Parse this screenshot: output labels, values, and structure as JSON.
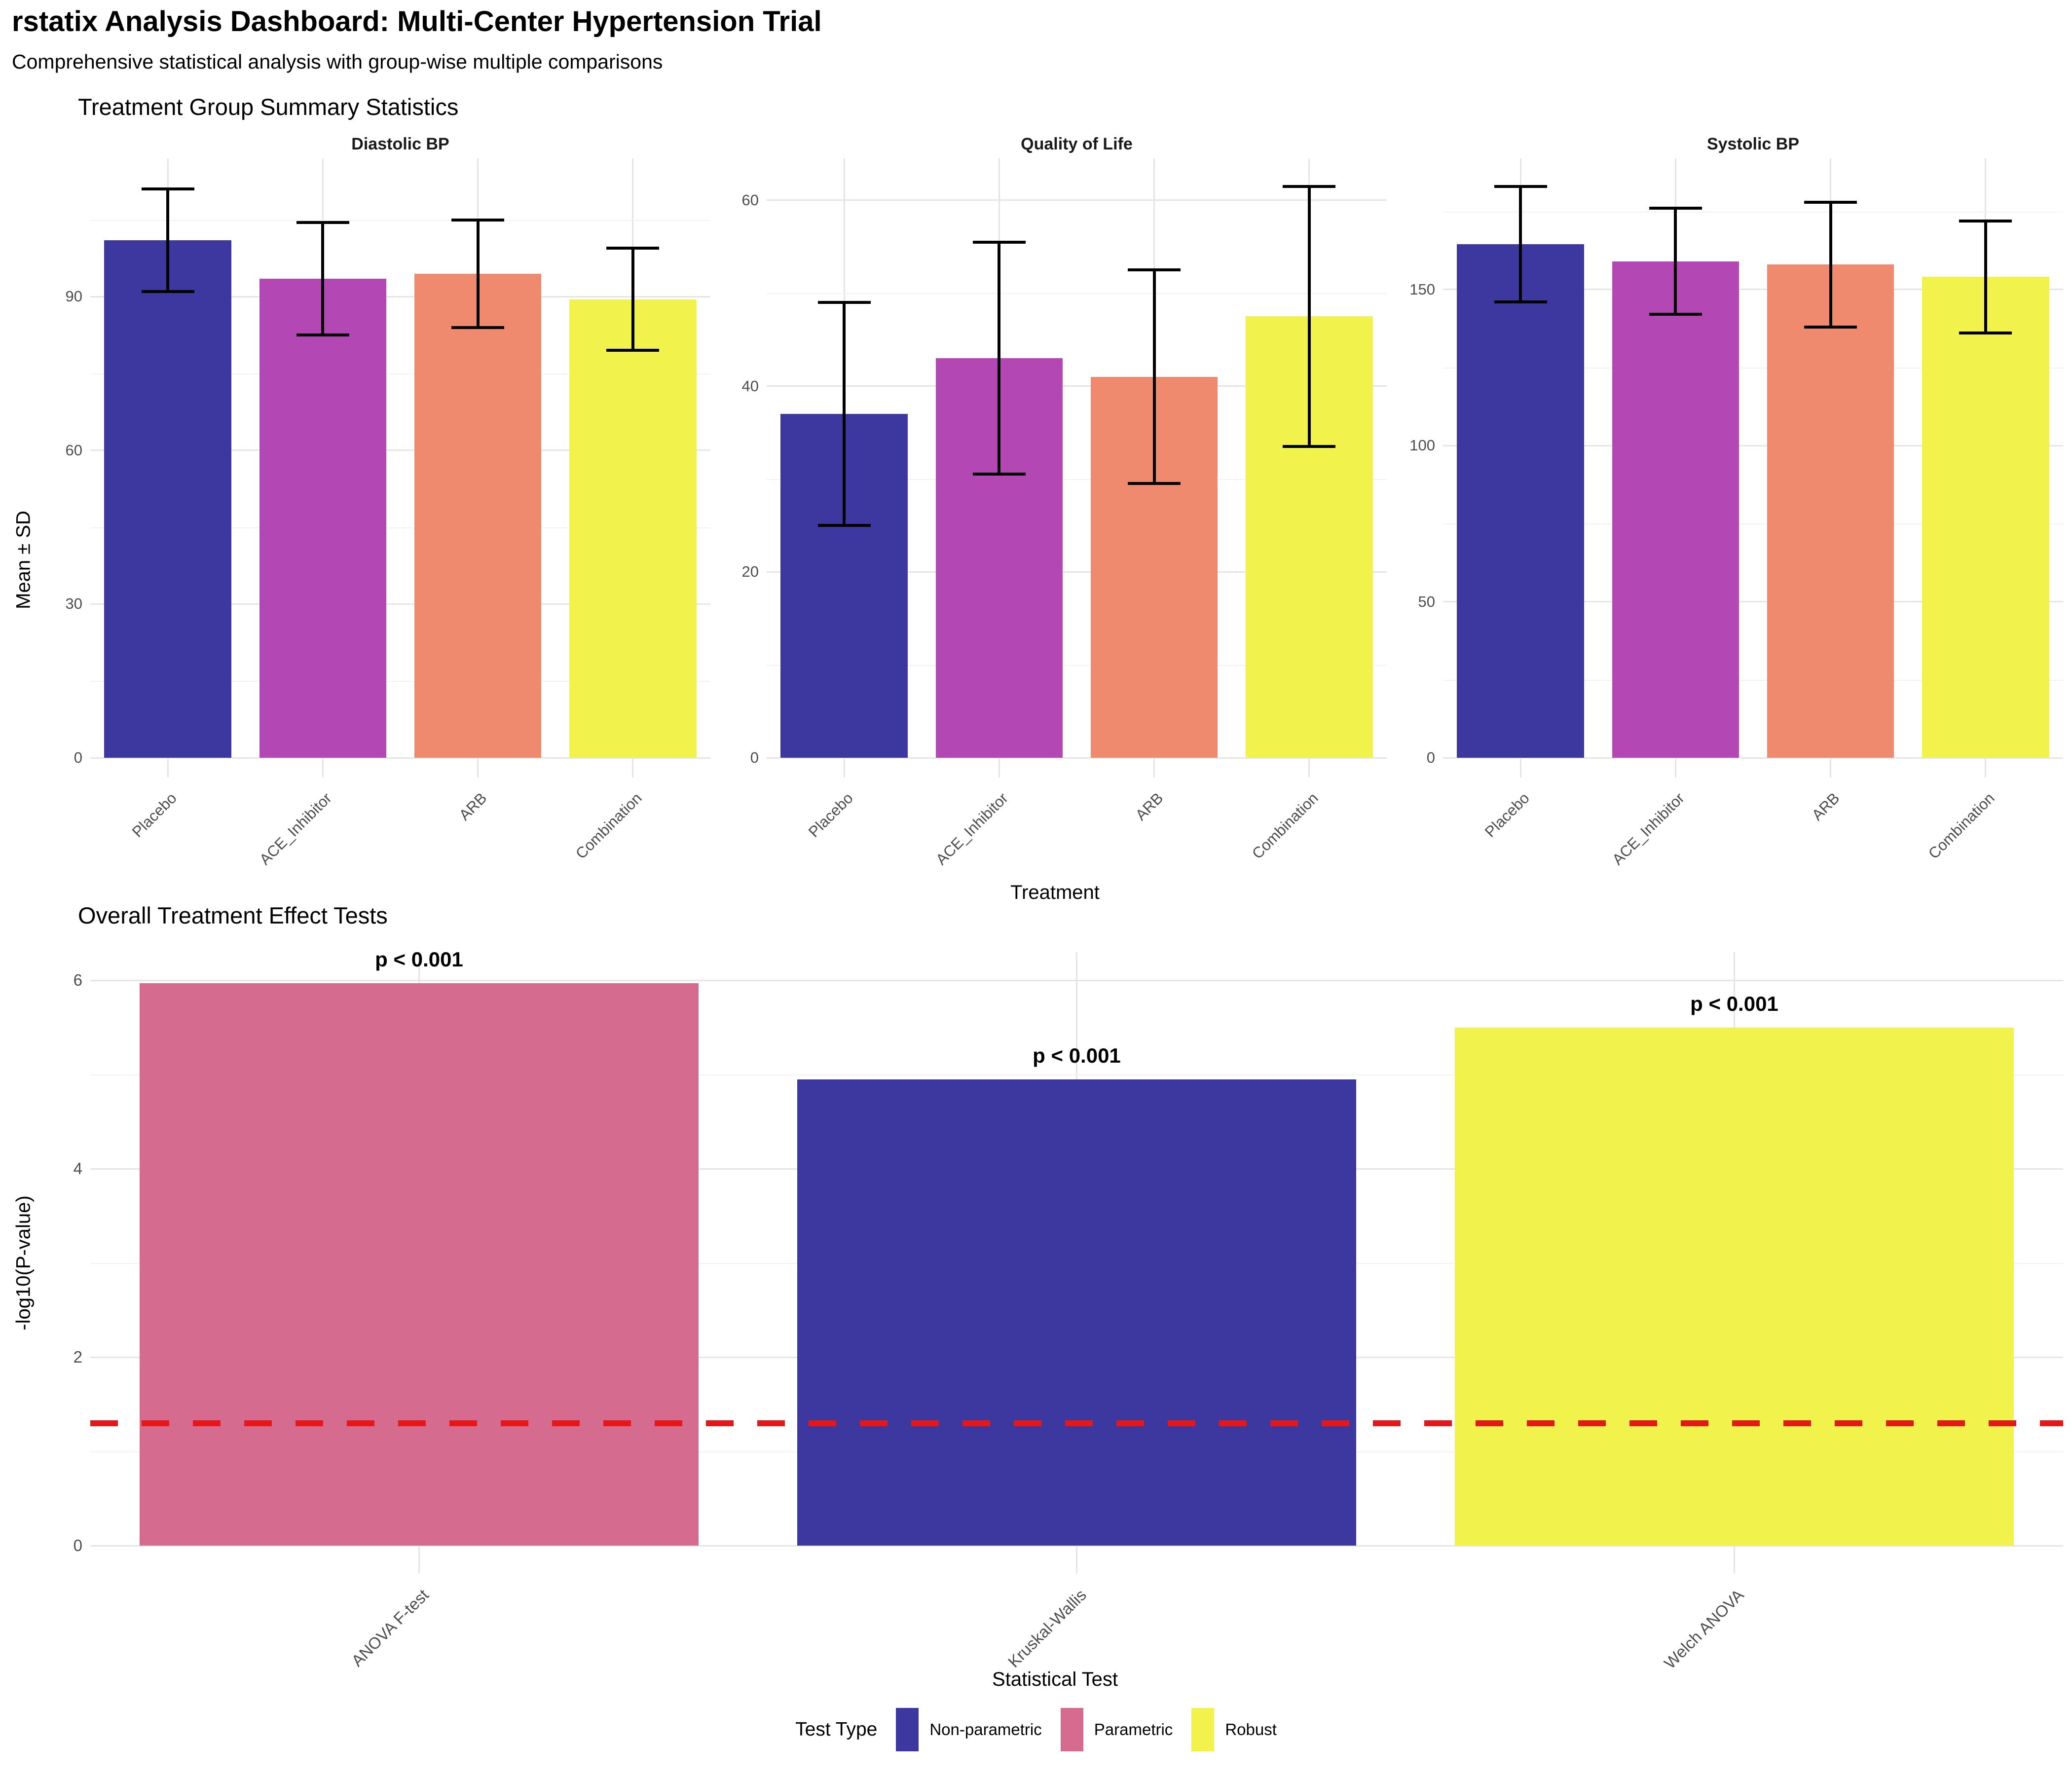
{
  "header": {
    "title": "rstatix Analysis Dashboard: Multi-Center Hypertension Trial",
    "subtitle": "Comprehensive statistical analysis with group-wise multiple comparisons"
  },
  "chart_data": [
    {
      "type": "bar",
      "title": "Treatment Group Summary Statistics",
      "xlabel": "Treatment",
      "ylabel": "Mean ± SD",
      "grid": true,
      "legend_position": "none",
      "categories": [
        "Placebo",
        "ACE_Inhibitor",
        "ARB",
        "Combination"
      ],
      "bar_colors": [
        "#3d38a0",
        "#b347b4",
        "#ef8a6e",
        "#f1f24b"
      ],
      "facets": [
        {
          "label": "Diastolic BP",
          "yticks": [
            0,
            30,
            60,
            90
          ],
          "ymax": 117,
          "means": [
            101,
            93.5,
            94.5,
            89.5
          ],
          "sds": [
            10,
            11,
            10.5,
            10
          ]
        },
        {
          "label": "Quality of Life",
          "yticks": [
            0,
            20,
            40,
            60
          ],
          "ymax": 64.5,
          "means": [
            37,
            43,
            41,
            47.5
          ],
          "sds": [
            12,
            12.5,
            11.5,
            14
          ]
        },
        {
          "label": "Systolic BP",
          "yticks": [
            0,
            50,
            100,
            150
          ],
          "ymax": 192,
          "means": [
            164.5,
            159,
            158,
            154
          ],
          "sds": [
            18.5,
            17,
            20,
            18
          ]
        }
      ]
    },
    {
      "type": "bar",
      "title": "Overall Treatment Effect Tests",
      "xlabel": "Statistical Test",
      "ylabel": "-log10(P-value)",
      "grid": true,
      "categories": [
        "ANOVA F-test",
        "Kruskal-Wallis",
        "Welch ANOVA"
      ],
      "values": [
        5.97,
        4.95,
        5.5
      ],
      "bar_labels": [
        "p < 0.001",
        "p < 0.001",
        "p < 0.001"
      ],
      "bar_colors": [
        "#d56c90",
        "#3d38a0",
        "#f1f24b"
      ],
      "yticks": [
        0,
        2,
        4,
        6
      ],
      "ylim": [
        0,
        6.3
      ],
      "significance_line": {
        "y": 1.301,
        "color": "#e81717",
        "style": "dashed"
      },
      "legend": {
        "title": "Test Type",
        "position": "bottom",
        "entries": [
          {
            "label": "Non-parametric",
            "color": "#3d38a0"
          },
          {
            "label": "Parametric",
            "color": "#d56c90"
          },
          {
            "label": "Robust",
            "color": "#f1f24b"
          }
        ]
      }
    }
  ]
}
